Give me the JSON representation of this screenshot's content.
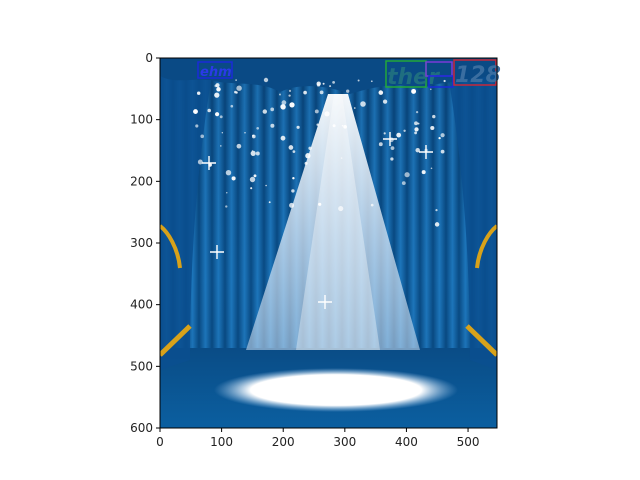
{
  "figure": {
    "axes": {
      "xlim": [
        0,
        547
      ],
      "ylim": [
        600,
        0
      ],
      "xticks": [
        0,
        100,
        200,
        300,
        400,
        500
      ],
      "yticks": [
        0,
        100,
        200,
        300,
        400,
        500,
        600
      ]
    },
    "image": {
      "subject": "blue-stage-curtains-spotlight",
      "curtain_color": "#0d5fa0",
      "dark_curtain_color": "#063a6b",
      "floor_color": "#0a5c9a",
      "spotlight_color": "#ffffff",
      "tassel_color": "#d8a21a"
    },
    "overlays": [
      {
        "text": "ehm",
        "box_color": "#1a2bd8",
        "text_color": "#2a3ae8"
      },
      {
        "text": "ther",
        "box_color": "#22a83a",
        "text_color": "#1f6e80"
      },
      {
        "text": "",
        "box_color": "#7a3ad8",
        "text_color": "#7a3ad8"
      },
      {
        "text": "",
        "box_color": "#1a2bd8",
        "text_color": "#1a2bd8"
      },
      {
        "text": "128",
        "box_color": "#c8283a",
        "text_color": "#3a6ea0"
      }
    ]
  }
}
